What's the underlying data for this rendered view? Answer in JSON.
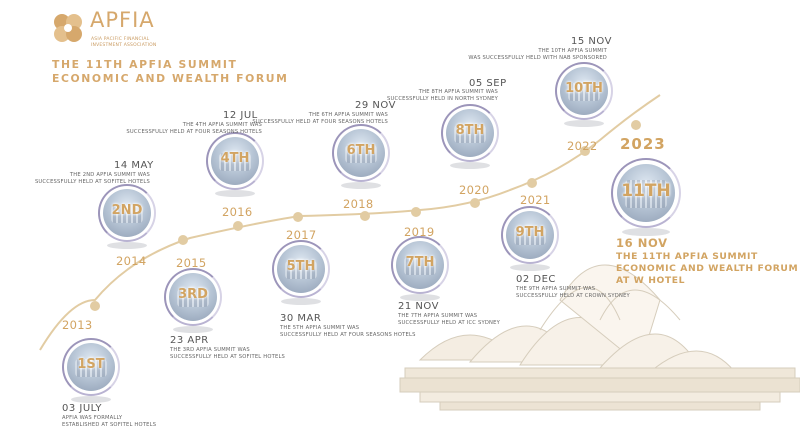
{
  "logo": {
    "name": "APFIA",
    "sub_line1": "ASIA PACIFIC FINANCIAL",
    "sub_line2": "INVESTMENT ASSOCIATION"
  },
  "title": {
    "line1": "THE 11TH APFIA SUMMIT",
    "line2": "ECONOMIC AND WEALTH FORUM"
  },
  "colors": {
    "gold": "#d2a462",
    "ring": "#9c95ba",
    "text": "#555555"
  },
  "years": [
    "2013",
    "2014",
    "2015",
    "2016",
    "2017",
    "2018",
    "2019",
    "2020",
    "2021",
    "2022",
    "2023"
  ],
  "summits": [
    {
      "num": "1ST",
      "date": "03 JULY",
      "desc1": "APFIA WAS FORMALLY",
      "desc2": "ESTABLISHED AT SOFITEL HOTELS"
    },
    {
      "num": "2ND",
      "date": "14 MAY",
      "desc1": "THE 2ND APFIA SUMMIT WAS",
      "desc2": "SUCCESSFULLY HELD AT SOFITEL HOTELS"
    },
    {
      "num": "3RD",
      "date": "23 APR",
      "desc1": "THE 3RD APFIA SUMMIT WAS",
      "desc2": "SUCCESSFULLY HELD AT SOFITEL HOTELS"
    },
    {
      "num": "4TH",
      "date": "12 JUL",
      "desc1": "THE 4TH APFIA SUMMIT WAS",
      "desc2": "SUCCESSFULLY HELD AT FOUR SEASONS HOTELS"
    },
    {
      "num": "5TH",
      "date": "30 MAR",
      "desc1": "THE 5TH APFIA SUMMIT WAS",
      "desc2": "SUCCESSFULLY HELD AT FOUR SEASONS HOTELS"
    },
    {
      "num": "6TH",
      "date": "29 NOV",
      "desc1": "THE 6TH APFIA SUMMIT WAS",
      "desc2": "SUCCESSFULLY HELD AT FOUR SEASONS HOTELS"
    },
    {
      "num": "7TH",
      "date": "21 NOV",
      "desc1": "THE 7TH APFIA SUMMIT WAS",
      "desc2": "SUCCESSFULLY HELD AT ICC SYDNEY"
    },
    {
      "num": "8TH",
      "date": "05 SEP",
      "desc1": "THE 8TH APFIA SUMMIT WAS",
      "desc2": "SUCCESSFULLY HELD IN NORTH SYDNEY"
    },
    {
      "num": "9TH",
      "date": "02 DEC",
      "desc1": "THE 9TH APFIA SUMMIT WAS",
      "desc2": "SUCCESSFULLY HELD AT CROWN SYDNEY"
    },
    {
      "num": "10TH",
      "date": "15 NOV",
      "desc1": "THE 10TH APFIA SUMMIT",
      "desc2": "WAS SUCCESSFULLY HELD WITH NAB SPONSORED"
    },
    {
      "num": "11TH",
      "date": "16 NOV"
    }
  ],
  "final": {
    "line1": "THE 11TH APFIA SUMMIT",
    "line2": "ECONOMIC AND WEALTH FORUM",
    "line3": "AT W HOTEL"
  }
}
